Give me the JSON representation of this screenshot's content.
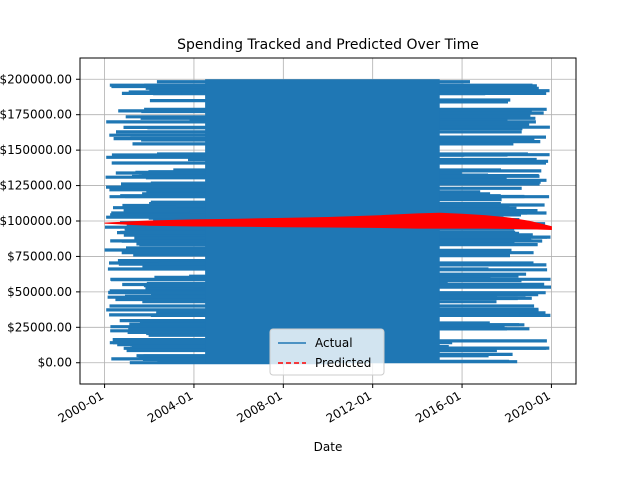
{
  "chart_data": {
    "type": "line",
    "title": "Spending Tracked and Predicted Over Time",
    "xlabel": "Date",
    "ylabel": "",
    "x_ticks": [
      "2000-01",
      "2004-01",
      "2008-01",
      "2012-01",
      "2016-01",
      "2020-01"
    ],
    "y_ticks": [
      "$0.00",
      "$25000.00",
      "$50000.00",
      "$75000.00",
      "$100000.00",
      "$125000.00",
      "$150000.00",
      "$175000.00",
      "$200000.00"
    ],
    "xlim": [
      "2000-01",
      "2020-01"
    ],
    "ylim": [
      0,
      200000
    ],
    "grid": true,
    "legend_position": "lower center",
    "series": [
      {
        "name": "Actual",
        "style": "solid",
        "color": "#1f77b4",
        "range": [
          0,
          200000
        ]
      },
      {
        "name": "Predicted",
        "style": "dashed",
        "color": "#ff0000",
        "x": [
          "2000-01",
          "2002-01",
          "2004-01",
          "2006-01",
          "2008-01",
          "2010-01",
          "2012-01",
          "2014-01",
          "2015-01",
          "2016-01",
          "2017-01",
          "2018-01",
          "2019-01",
          "2020-01"
        ],
        "upper": [
          98500,
          100000,
          100800,
          101300,
          101800,
          102500,
          103500,
          105000,
          105400,
          104800,
          103800,
          102300,
          99800,
          96000
        ],
        "lower": [
          98500,
          97000,
          96500,
          96300,
          96000,
          95800,
          95500,
          95000,
          95000,
          95000,
          95000,
          94800,
          94500,
          94000
        ]
      }
    ]
  }
}
